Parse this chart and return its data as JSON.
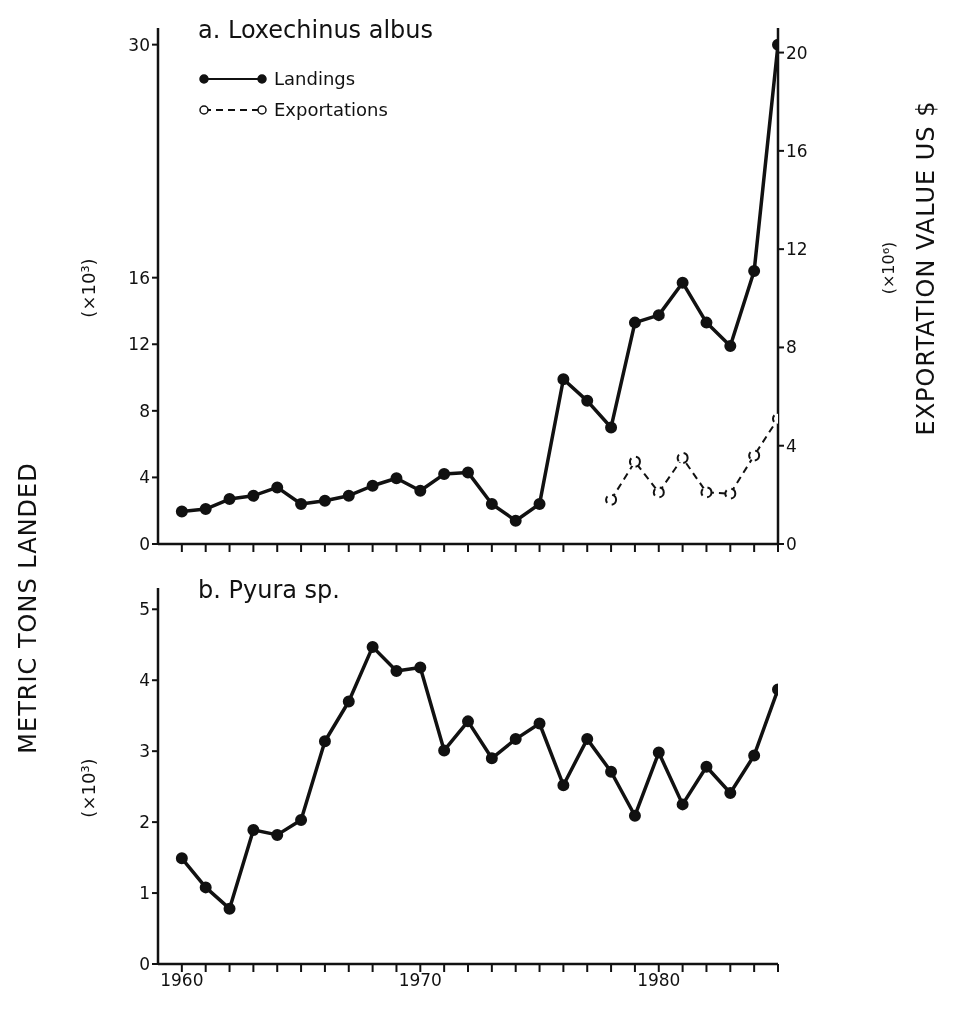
{
  "chart_data": [
    {
      "type": "line",
      "title": "a. Loxechinus albus",
      "ylabel": "METRIC TONS LANDED",
      "y2label": "EXPORTATION VALUE US $",
      "annotations": [
        "(×10³)",
        "(×10⁶)"
      ],
      "x": [
        1960,
        1961,
        1962,
        1963,
        1964,
        1965,
        1966,
        1967,
        1968,
        1969,
        1970,
        1971,
        1972,
        1973,
        1974,
        1975,
        1976,
        1977,
        1978,
        1979,
        1980,
        1981,
        1982,
        1983,
        1984,
        1985
      ],
      "xlim": [
        1959,
        1985
      ],
      "xticks": [
        {
          "value": 1960,
          "label": null
        },
        {
          "value": 1961,
          "label": null
        },
        {
          "value": 1962,
          "label": null
        },
        {
          "value": 1963,
          "label": null
        },
        {
          "value": 1964,
          "label": null
        },
        {
          "value": 1965,
          "label": null
        },
        {
          "value": 1966,
          "label": null
        },
        {
          "value": 1967,
          "label": null
        },
        {
          "value": 1968,
          "label": null
        },
        {
          "value": 1969,
          "label": null
        },
        {
          "value": 1970,
          "label": null
        },
        {
          "value": 1971,
          "label": null
        },
        {
          "value": 1972,
          "label": null
        },
        {
          "value": 1973,
          "label": null
        },
        {
          "value": 1974,
          "label": null
        },
        {
          "value": 1975,
          "label": null
        },
        {
          "value": 1976,
          "label": null
        },
        {
          "value": 1977,
          "label": null
        },
        {
          "value": 1978,
          "label": null
        },
        {
          "value": 1979,
          "label": null
        },
        {
          "value": 1980,
          "label": null
        },
        {
          "value": 1981,
          "label": null
        },
        {
          "value": 1982,
          "label": null
        },
        {
          "value": 1983,
          "label": null
        },
        {
          "value": 1984,
          "label": null
        },
        {
          "value": 1985,
          "label": null
        }
      ],
      "ylim": [
        0,
        31
      ],
      "yticks": [
        0,
        4,
        8,
        12,
        16,
        30
      ],
      "y2lim": [
        0,
        21
      ],
      "y2ticks": [
        0,
        4,
        8,
        12,
        16,
        20
      ],
      "series": [
        {
          "name": "Landings",
          "color": "#111111",
          "marker": "circle",
          "line_style": "solid",
          "values": [
            1.95,
            2.1,
            2.7,
            2.9,
            3.4,
            2.4,
            2.6,
            2.9,
            3.5,
            3.95,
            3.2,
            4.2,
            4.3,
            2.4,
            1.4,
            2.4,
            9.9,
            8.6,
            7.0,
            13.3,
            13.75,
            15.7,
            13.3,
            11.9,
            16.4,
            30
          ]
        },
        {
          "name": "Exportations",
          "color": "#111111",
          "marker": "circle",
          "line_style": "dashed",
          "axis": "y2",
          "values": [
            null,
            null,
            null,
            null,
            null,
            null,
            null,
            null,
            null,
            null,
            null,
            null,
            null,
            null,
            null,
            null,
            null,
            null,
            1.8,
            3.35,
            2.1,
            3.5,
            2.1,
            2.05,
            3.6,
            5.1
          ]
        }
      ],
      "legend": "top left",
      "grid": false,
      "tick_labels": "y"
    },
    {
      "type": "line",
      "title": "b. Pyura sp.",
      "annotations": [
        "(×10³)"
      ],
      "x": [
        1960,
        1961,
        1962,
        1963,
        1964,
        1965,
        1966,
        1967,
        1968,
        1969,
        1970,
        1971,
        1972,
        1973,
        1974,
        1975,
        1976,
        1977,
        1978,
        1979,
        1980,
        1981,
        1982,
        1983,
        1984,
        1985
      ],
      "xlim": [
        1959,
        1985
      ],
      "xticks": [
        1960,
        {
          "value": 1961,
          "label": null
        },
        {
          "value": 1962,
          "label": null
        },
        {
          "value": 1963,
          "label": null
        },
        {
          "value": 1964,
          "label": null
        },
        {
          "value": 1965,
          "label": null
        },
        {
          "value": 1966,
          "label": null
        },
        {
          "value": 1967,
          "label": null
        },
        {
          "value": 1968,
          "label": null
        },
        {
          "value": 1969,
          "label": null
        },
        1970,
        {
          "value": 1971,
          "label": null
        },
        {
          "value": 1972,
          "label": null
        },
        {
          "value": 1973,
          "label": null
        },
        {
          "value": 1974,
          "label": null
        },
        {
          "value": 1975,
          "label": null
        },
        {
          "value": 1976,
          "label": null
        },
        {
          "value": 1977,
          "label": null
        },
        {
          "value": 1978,
          "label": null
        },
        {
          "value": 1979,
          "label": null
        },
        1980,
        {
          "value": 1981,
          "label": null
        },
        {
          "value": 1982,
          "label": null
        },
        {
          "value": 1983,
          "label": null
        },
        {
          "value": 1984,
          "label": null
        },
        {
          "value": 1985,
          "label": null
        }
      ],
      "ylim": [
        0,
        5.3
      ],
      "yticks": [
        0,
        1,
        2,
        3,
        4,
        5
      ],
      "series": [
        {
          "color": "#111111",
          "marker": "circle",
          "line_style": "solid",
          "values": [
            1.49,
            1.08,
            0.78,
            1.89,
            1.82,
            2.03,
            3.14,
            3.7,
            4.47,
            4.13,
            4.18,
            3.01,
            3.42,
            2.9,
            3.17,
            3.39,
            2.52,
            3.17,
            2.71,
            2.09,
            2.98,
            2.25,
            2.78,
            2.41,
            2.94,
            3.87
          ]
        }
      ],
      "legend": false,
      "grid": false
    }
  ]
}
